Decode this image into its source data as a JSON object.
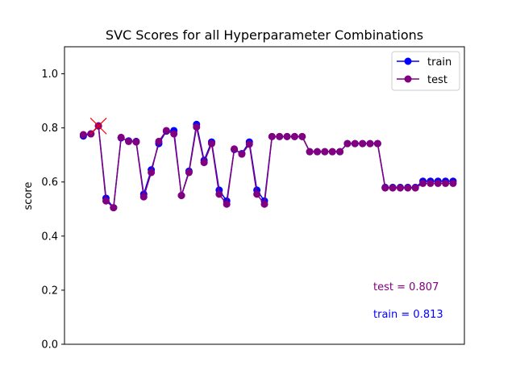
{
  "chart_data": {
    "type": "line",
    "title": "SVC Scores for all Hyperparameter Combinations",
    "xlabel": "",
    "ylabel": "score",
    "ylim": [
      0.0,
      1.1
    ],
    "xlim": [
      -2.5,
      50.5
    ],
    "yticks": [
      0.0,
      0.2,
      0.4,
      0.6,
      0.8,
      1.0
    ],
    "ytick_labels": [
      "0.0",
      "0.2",
      "0.4",
      "0.6",
      "0.8",
      "1.0"
    ],
    "show_xticks": false,
    "grid": false,
    "legend": "top-right",
    "series": [
      {
        "name": "train",
        "color": "#0000ff",
        "values": [
          0.77,
          0.778,
          0.808,
          0.54,
          0.505,
          0.763,
          0.752,
          0.75,
          0.555,
          0.645,
          0.742,
          0.788,
          0.79,
          0.55,
          0.64,
          0.813,
          0.68,
          0.748,
          0.57,
          0.53,
          0.72,
          0.705,
          0.748,
          0.57,
          0.53,
          0.768,
          0.768,
          0.768,
          0.768,
          0.768,
          0.712,
          0.712,
          0.712,
          0.712,
          0.712,
          0.742,
          0.742,
          0.742,
          0.742,
          0.742,
          0.58,
          0.58,
          0.58,
          0.58,
          0.58,
          0.603,
          0.603,
          0.603,
          0.603,
          0.603
        ]
      },
      {
        "name": "test",
        "color": "#800080",
        "values": [
          0.775,
          0.778,
          0.807,
          0.53,
          0.505,
          0.765,
          0.75,
          0.748,
          0.545,
          0.635,
          0.75,
          0.79,
          0.778,
          0.55,
          0.635,
          0.803,
          0.672,
          0.742,
          0.555,
          0.518,
          0.722,
          0.703,
          0.74,
          0.555,
          0.518,
          0.768,
          0.768,
          0.768,
          0.768,
          0.768,
          0.712,
          0.712,
          0.712,
          0.712,
          0.712,
          0.742,
          0.742,
          0.742,
          0.742,
          0.742,
          0.578,
          0.578,
          0.578,
          0.578,
          0.578,
          0.595,
          0.595,
          0.595,
          0.595,
          0.595
        ]
      }
    ],
    "best_marker": {
      "index": 2,
      "value": 0.807,
      "color": "#ff0000"
    },
    "annotations": {
      "test": {
        "text": "test = 0.807",
        "color": "#800080"
      },
      "train": {
        "text": "train = 0.813",
        "color": "#0000ff"
      }
    }
  }
}
